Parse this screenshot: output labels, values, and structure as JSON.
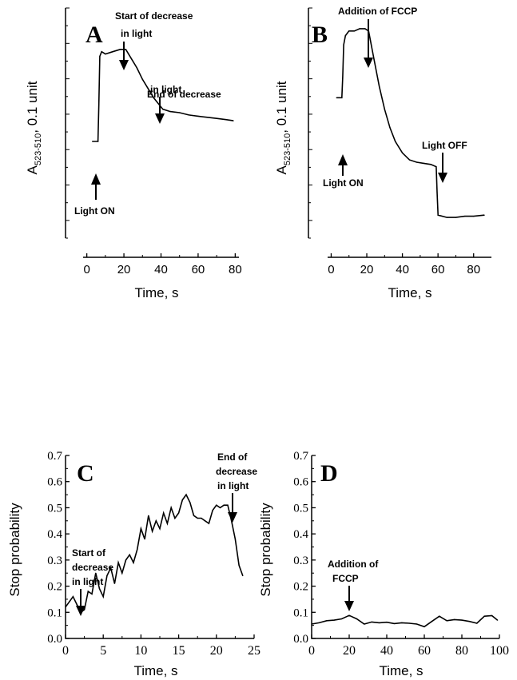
{
  "chart_data": [
    {
      "panel": "A",
      "type": "line",
      "xlabel": "Time, s",
      "ylabel_main": "A",
      "ylabel_sub": "523-510",
      "ylabel_tail": ",  0.1 unit",
      "xlim": [
        -2,
        82
      ],
      "xticks": [
        0,
        20,
        40,
        60,
        80
      ],
      "ylim": [
        0,
        1
      ],
      "y_ticks_unlabeled": true,
      "annotations": [
        {
          "text": "Start of decrease in light",
          "x": 21,
          "pointing": "down"
        },
        {
          "text": "End of decrease in light",
          "x": 40,
          "pointing": "down"
        },
        {
          "text": "Light ON",
          "x": 6,
          "pointing": "up"
        }
      ],
      "x": [
        3,
        6,
        6.5,
        7,
        8,
        10,
        14,
        18,
        21,
        24,
        27,
        30,
        33,
        36,
        39,
        41,
        45,
        50,
        55,
        60,
        65,
        70,
        75,
        79
      ],
      "y": [
        0.42,
        0.42,
        0.58,
        0.79,
        0.81,
        0.8,
        0.81,
        0.82,
        0.82,
        0.78,
        0.74,
        0.69,
        0.65,
        0.61,
        0.58,
        0.56,
        0.55,
        0.545,
        0.535,
        0.53,
        0.525,
        0.52,
        0.515,
        0.51
      ]
    },
    {
      "panel": "B",
      "type": "line",
      "xlabel": "Time, s",
      "ylabel_main": "A",
      "ylabel_sub": "523-510",
      "ylabel_tail": ",  0.1 unit",
      "xlim": [
        -2,
        90
      ],
      "xticks": [
        0,
        20,
        40,
        60,
        80
      ],
      "ylim": [
        0,
        1
      ],
      "y_ticks_unlabeled": true,
      "annotations": [
        {
          "text": "Addition of FCCP",
          "x": 20,
          "pointing": "down"
        },
        {
          "text": "Light OFF",
          "x": 59,
          "pointing": "down"
        },
        {
          "text": "Light ON",
          "x": 6,
          "pointing": "up"
        }
      ],
      "x": [
        3,
        6,
        6.5,
        7,
        8,
        10,
        13,
        16,
        19,
        21,
        22,
        24,
        27,
        30,
        33,
        36,
        40,
        44,
        48,
        52,
        56,
        59,
        59.5,
        60,
        65,
        70,
        75,
        80,
        86
      ],
      "y": [
        0.61,
        0.61,
        0.7,
        0.84,
        0.88,
        0.9,
        0.9,
        0.91,
        0.91,
        0.9,
        0.86,
        0.78,
        0.66,
        0.56,
        0.48,
        0.42,
        0.37,
        0.34,
        0.33,
        0.325,
        0.32,
        0.31,
        0.2,
        0.1,
        0.09,
        0.09,
        0.095,
        0.095,
        0.1
      ]
    },
    {
      "panel": "C",
      "type": "line",
      "xlabel": "Time, s",
      "ylabel": "Stop probability",
      "xlim": [
        0,
        25
      ],
      "xticks": [
        0,
        5,
        10,
        15,
        20,
        25
      ],
      "ylim": [
        0,
        0.7
      ],
      "yticks": [
        "0.0",
        "0.1",
        "0.2",
        "0.3",
        "0.4",
        "0.5",
        "0.6",
        "0.7"
      ],
      "annotations": [
        {
          "text": "Start of decrease in light",
          "x": 2,
          "pointing": "down"
        },
        {
          "text": "End of decrease in light",
          "x": 22,
          "pointing": "down"
        }
      ],
      "x": [
        0,
        0.5,
        1,
        1.5,
        2,
        2.5,
        3,
        3.5,
        4,
        4.5,
        5,
        5.5,
        6,
        6.5,
        7,
        7.5,
        8,
        8.5,
        9,
        9.5,
        10,
        10.5,
        11,
        11.5,
        12,
        12.5,
        13,
        13.5,
        14,
        14.5,
        15,
        15.5,
        16,
        16.5,
        17,
        17.5,
        18,
        18.5,
        19,
        19.5,
        20,
        20.5,
        21,
        21.5,
        22,
        22.5,
        23,
        23.5
      ],
      "y": [
        0.12,
        0.14,
        0.16,
        0.13,
        0.1,
        0.11,
        0.18,
        0.17,
        0.25,
        0.19,
        0.16,
        0.24,
        0.27,
        0.21,
        0.29,
        0.25,
        0.3,
        0.32,
        0.29,
        0.34,
        0.42,
        0.38,
        0.47,
        0.41,
        0.45,
        0.42,
        0.48,
        0.44,
        0.5,
        0.46,
        0.48,
        0.53,
        0.55,
        0.52,
        0.47,
        0.46,
        0.46,
        0.45,
        0.44,
        0.49,
        0.51,
        0.5,
        0.51,
        0.51,
        0.45,
        0.38,
        0.28,
        0.24
      ]
    },
    {
      "panel": "D",
      "type": "line",
      "xlabel": "Time, s",
      "ylabel": "Stop probability",
      "xlim": [
        0,
        100
      ],
      "xticks": [
        0,
        20,
        40,
        60,
        80,
        100
      ],
      "ylim": [
        0,
        0.7
      ],
      "yticks": [
        "0.0",
        "0.1",
        "0.2",
        "0.3",
        "0.4",
        "0.5",
        "0.6",
        "0.7"
      ],
      "annotations": [
        {
          "text": "Addition of FCCP",
          "x": 20,
          "pointing": "down"
        }
      ],
      "x": [
        0,
        4,
        8,
        12,
        16,
        20,
        24,
        28,
        32,
        36,
        40,
        44,
        48,
        52,
        56,
        60,
        64,
        68,
        72,
        76,
        80,
        84,
        88,
        92,
        96,
        99
      ],
      "y": [
        0.055,
        0.06,
        0.068,
        0.07,
        0.075,
        0.088,
        0.075,
        0.055,
        0.063,
        0.06,
        0.062,
        0.057,
        0.06,
        0.058,
        0.055,
        0.045,
        0.065,
        0.085,
        0.068,
        0.072,
        0.07,
        0.065,
        0.058,
        0.085,
        0.087,
        0.07
      ]
    }
  ]
}
